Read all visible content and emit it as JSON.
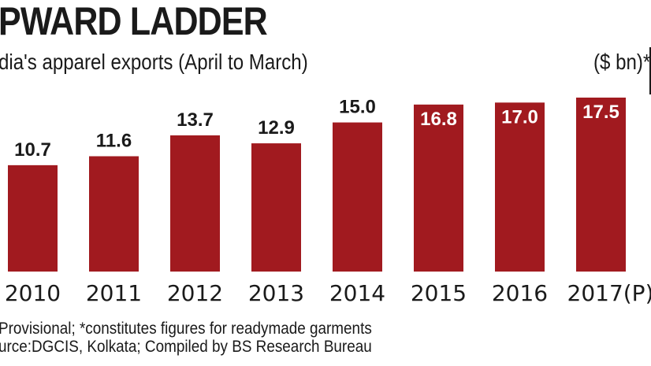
{
  "header": {
    "title": "PWARD LADDER",
    "subtitle": "dia's apparel exports (April to March)",
    "unit": "($ bn)*"
  },
  "footnotes": {
    "line1": "Provisional; *constitutes figures for readymade garments",
    "line2": "urce:DGCIS, Kolkata; Compiled by BS Research Bureau"
  },
  "colors": {
    "bar": "#a11a1f",
    "label_dark": "#1a1a1a",
    "label_light": "#ffffff"
  },
  "chart_data": {
    "type": "bar",
    "title": "PWARD LADDER",
    "subtitle": "dia's apparel exports (April to March)",
    "ylabel": "($ bn)*",
    "xlabel": "",
    "categories": [
      "2010",
      "2011",
      "2012",
      "2013",
      "2014",
      "2015",
      "2016",
      "2017(P)"
    ],
    "values": [
      10.7,
      11.6,
      13.7,
      12.9,
      15.0,
      16.8,
      17.0,
      17.5
    ],
    "value_labels": [
      "10.7",
      "11.6",
      "13.7",
      "12.9",
      "15.0",
      "16.8",
      "17.0",
      "17.5"
    ],
    "labels_inside_from_index": 5,
    "ylim": [
      0,
      17.5
    ],
    "grid": false,
    "legend": "none"
  }
}
